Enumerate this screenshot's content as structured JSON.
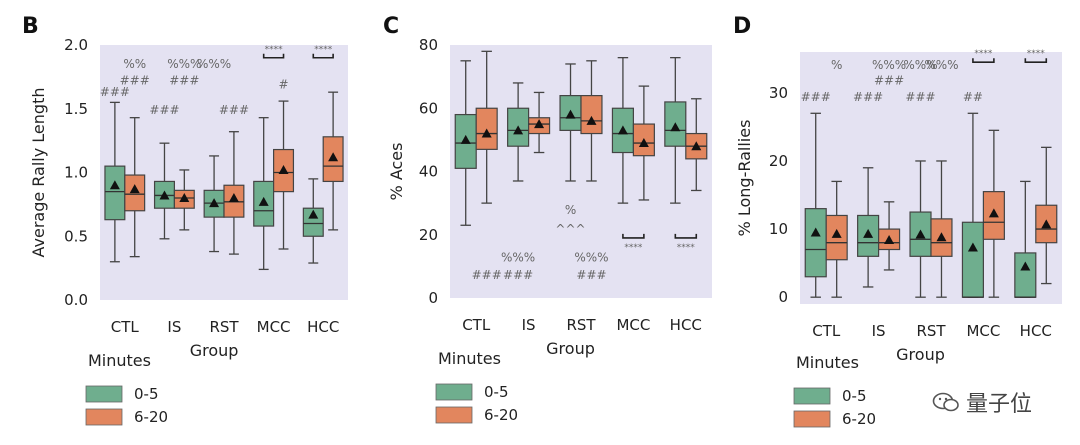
{
  "colors": {
    "panel_bg": "#e4e2f2",
    "green": "#6fae8e",
    "orange": "#e2865e",
    "median": "#333333",
    "whisker": "#444444",
    "sig": "#666666"
  },
  "legend": {
    "title": "Minutes",
    "entries": [
      "0-5",
      "6-20"
    ]
  },
  "watermark": {
    "text": "量子位",
    "icon": "wechat-icon"
  },
  "chart_data": [
    {
      "panel": "B",
      "type": "boxplot",
      "ylabel": "Average Rally Length",
      "xlabel": "Group",
      "ylim": [
        0,
        2.0
      ],
      "yticks": [
        "0.0",
        "0.5",
        "1.0",
        "1.5",
        "2.0"
      ],
      "ytick_values": [
        0,
        0.5,
        1.0,
        1.5,
        2.0
      ],
      "categories": [
        "CTL",
        "IS",
        "RST",
        "MCC",
        "HCC"
      ],
      "series": [
        {
          "name": "0-5",
          "boxes": [
            {
              "min": 0.3,
              "q1": 0.63,
              "med": 0.85,
              "q3": 1.05,
              "max": 1.55,
              "mean": 0.9
            },
            {
              "min": 0.48,
              "q1": 0.72,
              "med": 0.82,
              "q3": 0.93,
              "max": 1.23,
              "mean": 0.82
            },
            {
              "min": 0.38,
              "q1": 0.65,
              "med": 0.76,
              "q3": 0.86,
              "max": 1.13,
              "mean": 0.76
            },
            {
              "min": 0.24,
              "q1": 0.58,
              "med": 0.7,
              "q3": 0.93,
              "max": 1.43,
              "mean": 0.77
            },
            {
              "min": 0.29,
              "q1": 0.5,
              "med": 0.6,
              "q3": 0.72,
              "max": 0.95,
              "mean": 0.67
            }
          ]
        },
        {
          "name": "6-20",
          "boxes": [
            {
              "min": 0.34,
              "q1": 0.7,
              "med": 0.83,
              "q3": 0.98,
              "max": 1.43,
              "mean": 0.87
            },
            {
              "min": 0.55,
              "q1": 0.72,
              "med": 0.8,
              "q3": 0.86,
              "max": 1.02,
              "mean": 0.8
            },
            {
              "min": 0.36,
              "q1": 0.65,
              "med": 0.77,
              "q3": 0.9,
              "max": 1.32,
              "mean": 0.8
            },
            {
              "min": 0.4,
              "q1": 0.85,
              "med": 1.0,
              "q3": 1.18,
              "max": 1.56,
              "mean": 1.02
            },
            {
              "min": 0.55,
              "q1": 0.93,
              "med": 1.05,
              "q3": 1.28,
              "max": 1.63,
              "mean": 1.12
            }
          ]
        }
      ],
      "annotations": [
        {
          "text": "###",
          "cat": 0,
          "series": 0,
          "y": 1.6
        },
        {
          "text": "%%",
          "cat": 0,
          "series": 1,
          "y": 1.82
        },
        {
          "text": "###",
          "cat": 0,
          "series": 1,
          "y": 1.69
        },
        {
          "text": "###",
          "cat": 1,
          "series": 0,
          "y": 1.46
        },
        {
          "text": "%%%",
          "cat": 1,
          "series": 1,
          "y": 1.82
        },
        {
          "text": "###",
          "cat": 1,
          "series": 1,
          "y": 1.69
        },
        {
          "text": "%%%",
          "cat": 2,
          "series": 0,
          "y": 1.82
        },
        {
          "text": "###",
          "cat": 2,
          "series": 1,
          "y": 1.46
        },
        {
          "text": "#",
          "cat": 3,
          "series": 1,
          "y": 1.66
        }
      ],
      "brackets": [
        {
          "cat": 3,
          "text": "****",
          "y": 1.9
        },
        {
          "cat": 4,
          "text": "****",
          "y": 1.9
        }
      ]
    },
    {
      "panel": "C",
      "type": "boxplot",
      "ylabel": "% Aces",
      "xlabel": "Group",
      "ylim": [
        0,
        80
      ],
      "yticks": [
        "0",
        "20",
        "40",
        "60",
        "80"
      ],
      "ytick_values": [
        0,
        20,
        40,
        60,
        80
      ],
      "categories": [
        "CTL",
        "IS",
        "RST",
        "MCC",
        "HCC"
      ],
      "series": [
        {
          "name": "0-5",
          "boxes": [
            {
              "min": 23,
              "q1": 41,
              "med": 49,
              "q3": 58,
              "max": 75,
              "mean": 50
            },
            {
              "min": 37,
              "q1": 48,
              "med": 53,
              "q3": 60,
              "max": 68,
              "mean": 53
            },
            {
              "min": 37,
              "q1": 53,
              "med": 57,
              "q3": 64,
              "max": 74,
              "mean": 58
            },
            {
              "min": 30,
              "q1": 46,
              "med": 52,
              "q3": 60,
              "max": 76,
              "mean": 53
            },
            {
              "min": 30,
              "q1": 48,
              "med": 53,
              "q3": 62,
              "max": 76,
              "mean": 54
            }
          ]
        },
        {
          "name": "6-20",
          "boxes": [
            {
              "min": 30,
              "q1": 47,
              "med": 52,
              "q3": 60,
              "max": 78,
              "mean": 52
            },
            {
              "min": 46,
              "q1": 52,
              "med": 55,
              "q3": 57,
              "max": 65,
              "mean": 55
            },
            {
              "min": 37,
              "q1": 52,
              "med": 56,
              "q3": 64,
              "max": 75,
              "mean": 56
            },
            {
              "min": 31,
              "q1": 45,
              "med": 49,
              "q3": 55,
              "max": 67,
              "mean": 49
            },
            {
              "min": 34,
              "q1": 44,
              "med": 48,
              "q3": 52,
              "max": 63,
              "mean": 48
            }
          ]
        }
      ],
      "annotations": [
        {
          "text": "###",
          "cat": 0,
          "series": 1,
          "y": 6
        },
        {
          "text": "%%%",
          "cat": 1,
          "series": 0,
          "y": 11.5
        },
        {
          "text": "###",
          "cat": 1,
          "series": 0,
          "y": 6
        },
        {
          "text": "%",
          "cat": 2,
          "series": 0,
          "y": 26.5
        },
        {
          "text": "^^^",
          "cat": 2,
          "series": 0,
          "y": 20.5
        },
        {
          "text": "%%%",
          "cat": 2,
          "series": 1,
          "y": 11.5
        },
        {
          "text": "###",
          "cat": 2,
          "series": 1,
          "y": 6
        }
      ],
      "brackets_low": [
        {
          "cat": 3,
          "text": "****",
          "y": 19
        },
        {
          "cat": 4,
          "text": "****",
          "y": 19
        }
      ]
    },
    {
      "panel": "D",
      "type": "boxplot",
      "ylabel": "% Long-Rallies",
      "xlabel": "Group",
      "ylim": [
        -1,
        36
      ],
      "yticks": [
        "0",
        "10",
        "20",
        "30"
      ],
      "ytick_values": [
        0,
        10,
        20,
        30
      ],
      "categories": [
        "CTL",
        "IS",
        "RST",
        "MCC",
        "HCC"
      ],
      "series": [
        {
          "name": "0-5",
          "boxes": [
            {
              "min": 0,
              "q1": 3,
              "med": 7,
              "q3": 13,
              "max": 27,
              "mean": 9.5
            },
            {
              "min": 1.5,
              "q1": 6,
              "med": 8,
              "q3": 12,
              "max": 19,
              "mean": 9.3
            },
            {
              "min": 0,
              "q1": 6,
              "med": 8.5,
              "q3": 12.5,
              "max": 20,
              "mean": 9.2
            },
            {
              "min": 0,
              "q1": 0,
              "med": 0,
              "q3": 11,
              "max": 27,
              "mean": 7.3
            },
            {
              "min": 0,
              "q1": 0,
              "med": 0,
              "q3": 6.5,
              "max": 17,
              "mean": 4.5
            }
          ]
        },
        {
          "name": "6-20",
          "boxes": [
            {
              "min": 0,
              "q1": 5.5,
              "med": 8,
              "q3": 12,
              "max": 17,
              "mean": 9.3
            },
            {
              "min": 4,
              "q1": 7,
              "med": 8,
              "q3": 10,
              "max": 14,
              "mean": 8.4
            },
            {
              "min": 0,
              "q1": 6,
              "med": 8,
              "q3": 11.5,
              "max": 20,
              "mean": 8.8
            },
            {
              "min": 0,
              "q1": 8.5,
              "med": 11,
              "q3": 15.5,
              "max": 24.5,
              "mean": 12.3
            },
            {
              "min": 2,
              "q1": 8,
              "med": 10,
              "q3": 13.5,
              "max": 22,
              "mean": 10.7
            }
          ]
        }
      ],
      "annotations": [
        {
          "text": "###",
          "cat": 0,
          "series": 0,
          "y": 28.8
        },
        {
          "text": "%",
          "cat": 0,
          "series": 1,
          "y": 33.5
        },
        {
          "text": "###",
          "cat": 1,
          "series": 0,
          "y": 28.8
        },
        {
          "text": "%%%",
          "cat": 1,
          "series": 1,
          "y": 33.5
        },
        {
          "text": "###",
          "cat": 1,
          "series": 1,
          "y": 31.2
        },
        {
          "text": "%%%",
          "cat": 2,
          "series": 0,
          "y": 33.5
        },
        {
          "text": "###",
          "cat": 2,
          "series": 0,
          "y": 28.8
        },
        {
          "text": "%%%",
          "cat": 2,
          "series": 1,
          "y": 33.5
        },
        {
          "text": "##",
          "cat": 3,
          "series": 0,
          "y": 28.8
        }
      ],
      "brackets": [
        {
          "cat": 3,
          "text": "****",
          "y": 34.5
        },
        {
          "cat": 4,
          "text": "****",
          "y": 34.5
        }
      ]
    }
  ]
}
